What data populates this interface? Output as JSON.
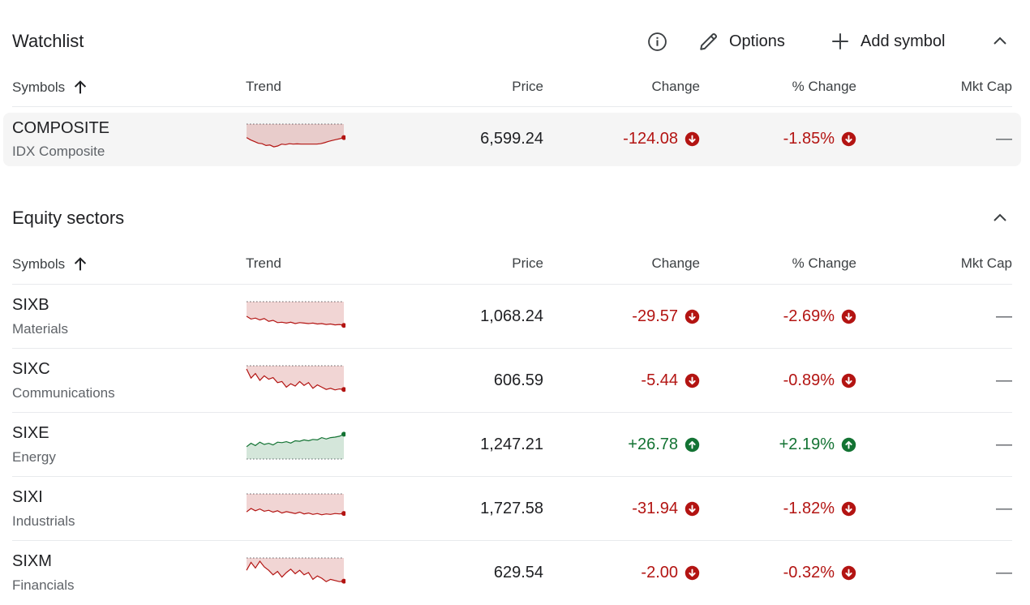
{
  "watchlist": {
    "title": "Watchlist",
    "info_icon": "info-icon",
    "options_label": "Options",
    "add_symbol_label": "Add symbol",
    "columns": {
      "symbols": "Symbols",
      "trend": "Trend",
      "price": "Price",
      "change": "Change",
      "pct_change": "% Change",
      "mkt_cap": "Mkt Cap"
    },
    "rows": [
      {
        "symbol": "COMPOSITE",
        "name": "IDX Composite",
        "price": "6,599.24",
        "change": "-124.08",
        "pct_change": "-1.85%",
        "mkt_cap": "—",
        "direction": "down",
        "trend": [
          0.45,
          0.55,
          0.62,
          0.7,
          0.72,
          0.8,
          0.78,
          0.86,
          0.82,
          0.74,
          0.76,
          0.72,
          0.74,
          0.73,
          0.74,
          0.74,
          0.74,
          0.74,
          0.74,
          0.72,
          0.68,
          0.62,
          0.58,
          0.54,
          0.5,
          0.45
        ]
      }
    ]
  },
  "sectors": {
    "title": "Equity sectors",
    "columns": {
      "symbols": "Symbols",
      "trend": "Trend",
      "price": "Price",
      "change": "Change",
      "pct_change": "% Change",
      "mkt_cap": "Mkt Cap"
    },
    "rows": [
      {
        "symbol": "SIXB",
        "name": "Materials",
        "price": "1,068.24",
        "change": "-29.57",
        "pct_change": "-2.69%",
        "mkt_cap": "—",
        "direction": "down",
        "trend": [
          0.5,
          0.62,
          0.58,
          0.66,
          0.6,
          0.72,
          0.68,
          0.78,
          0.76,
          0.8,
          0.76,
          0.82,
          0.78,
          0.8,
          0.82,
          0.8,
          0.84,
          0.82,
          0.86,
          0.84,
          0.88,
          0.86,
          0.9
        ]
      },
      {
        "symbol": "SIXC",
        "name": "Communications",
        "price": "606.59",
        "change": "-5.44",
        "pct_change": "-0.89%",
        "mkt_cap": "—",
        "direction": "down",
        "trend": [
          0.0,
          0.4,
          0.2,
          0.5,
          0.3,
          0.45,
          0.38,
          0.6,
          0.55,
          0.8,
          0.65,
          0.75,
          0.55,
          0.72,
          0.6,
          0.85,
          0.7,
          0.8,
          0.9,
          0.85,
          0.92,
          0.88,
          0.9
        ]
      },
      {
        "symbol": "SIXE",
        "name": "Energy",
        "price": "1,247.21",
        "change": "+26.78",
        "pct_change": "+2.19%",
        "mkt_cap": "—",
        "direction": "up",
        "trend": [
          0.6,
          0.45,
          0.55,
          0.4,
          0.5,
          0.45,
          0.52,
          0.4,
          0.42,
          0.38,
          0.44,
          0.34,
          0.36,
          0.3,
          0.34,
          0.28,
          0.3,
          0.2,
          0.26,
          0.2,
          0.18,
          0.14,
          0.05
        ]
      },
      {
        "symbol": "SIXI",
        "name": "Industrials",
        "price": "1,727.58",
        "change": "-31.94",
        "pct_change": "-1.82%",
        "mkt_cap": "—",
        "direction": "down",
        "trend": [
          0.65,
          0.5,
          0.6,
          0.52,
          0.62,
          0.58,
          0.66,
          0.6,
          0.7,
          0.64,
          0.68,
          0.72,
          0.66,
          0.74,
          0.7,
          0.76,
          0.72,
          0.78,
          0.74,
          0.76,
          0.72,
          0.74,
          0.72
        ]
      },
      {
        "symbol": "SIXM",
        "name": "Financials",
        "price": "629.54",
        "change": "-2.00",
        "pct_change": "-0.32%",
        "mkt_cap": "—",
        "direction": "down",
        "trend": [
          0.4,
          0.05,
          0.3,
          0.0,
          0.25,
          0.4,
          0.6,
          0.45,
          0.7,
          0.5,
          0.35,
          0.55,
          0.4,
          0.6,
          0.5,
          0.8,
          0.65,
          0.75,
          0.9,
          0.8,
          0.85,
          0.9,
          0.88
        ]
      }
    ]
  },
  "colors": {
    "negative": "#b31412",
    "positive": "#137333",
    "text": "#202124",
    "muted": "#5f6368"
  }
}
